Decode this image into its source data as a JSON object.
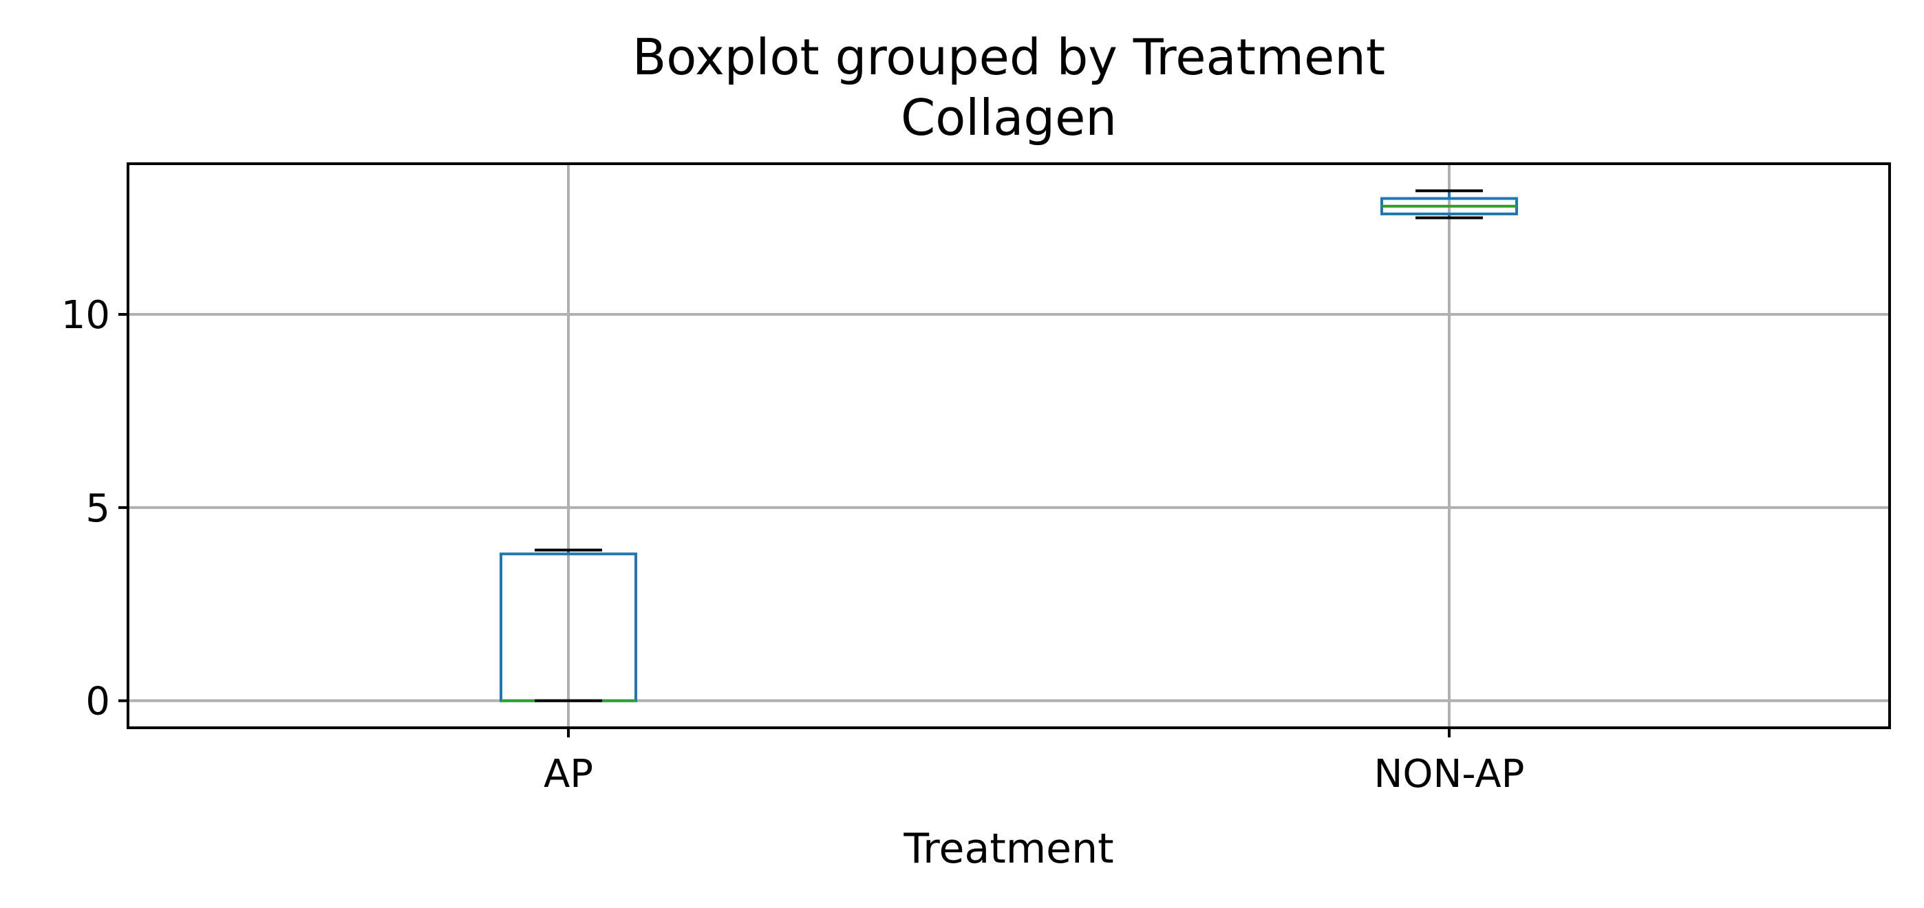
{
  "chart_data": {
    "type": "box",
    "title": "Boxplot grouped by Treatment",
    "subtitle": "Collagen",
    "xlabel": "Treatment",
    "ylabel": "",
    "categories": [
      "AP",
      "NON-AP"
    ],
    "boxes": [
      {
        "category": "AP",
        "whisker_low": 0.0,
        "q1": 0.0,
        "median": 0.0,
        "q3": 3.8,
        "whisker_high": 3.9
      },
      {
        "category": "NON-AP",
        "whisker_low": 12.5,
        "q1": 12.6,
        "median": 12.8,
        "q3": 13.0,
        "whisker_high": 13.2
      }
    ],
    "y_ticks": [
      0,
      5,
      10
    ],
    "y_tick_labels": [
      "0",
      "5",
      "10"
    ],
    "ylim": [
      -0.7,
      13.9
    ],
    "grid": true,
    "colors": {
      "box": "#1f77b4",
      "median": "#2ca02c",
      "whisker": "#000000",
      "grid": "#b0b0b0",
      "axes": "#000000"
    }
  }
}
